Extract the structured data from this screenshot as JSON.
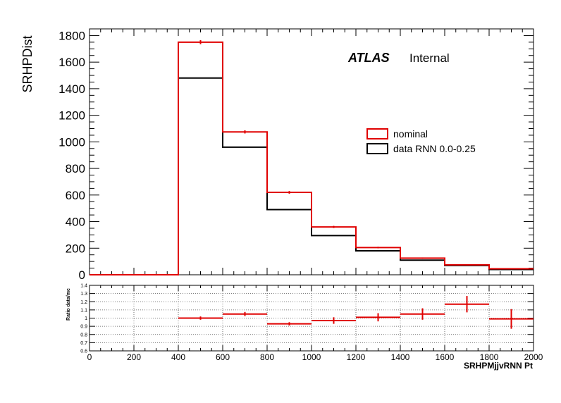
{
  "chart_data": [
    {
      "type": "histogram",
      "ylabel": "SRHPDist",
      "xlim": [
        0,
        2000
      ],
      "ylim": [
        0,
        1850
      ],
      "yticks": [
        0,
        200,
        400,
        600,
        800,
        1000,
        1200,
        1400,
        1600,
        1800
      ],
      "bin_edges": [
        0,
        200,
        400,
        600,
        800,
        1000,
        1200,
        1400,
        1600,
        1800,
        2000
      ],
      "series": [
        {
          "name": "nominal",
          "color": "#e00000",
          "values": [
            0,
            0,
            1750,
            1075,
            620,
            360,
            205,
            125,
            75,
            45
          ],
          "errors": [
            0,
            0,
            15,
            12,
            10,
            8,
            6,
            5,
            4,
            3
          ]
        },
        {
          "name": "data RNN 0.0-0.25",
          "color": "#000000",
          "values": [
            0,
            0,
            1480,
            960,
            490,
            295,
            180,
            110,
            70,
            40
          ]
        }
      ],
      "labels": {
        "atlas": "ATLAS",
        "internal": "Internal"
      },
      "legend": [
        {
          "label": "nominal",
          "color": "#e00000"
        },
        {
          "label": "data RNN 0.0-0.25",
          "color": "#000000"
        }
      ]
    },
    {
      "type": "ratio",
      "ylabel": "Ratio data/mc",
      "xlabel": "SRHPMjjvRNN Pt",
      "ylim": [
        0.6,
        1.4
      ],
      "yticks": [
        "0.6",
        "0.7",
        "0.8",
        "0.9",
        "1",
        "1.1",
        "1.2",
        "1.3",
        "1.4"
      ],
      "xticks": [
        "0",
        "200",
        "400",
        "600",
        "800",
        "1000",
        "1200",
        "1400",
        "1600",
        "1800",
        "2000"
      ],
      "bin_edges": [
        0,
        200,
        400,
        600,
        800,
        1000,
        1200,
        1400,
        1600,
        1800,
        2000
      ],
      "values": [
        null,
        null,
        1.0,
        1.05,
        0.93,
        0.97,
        1.01,
        1.05,
        1.17,
        0.99
      ],
      "errors": [
        0,
        0,
        0.02,
        0.025,
        0.02,
        0.04,
        0.05,
        0.07,
        0.1,
        0.12
      ],
      "color": "#e00000"
    }
  ]
}
